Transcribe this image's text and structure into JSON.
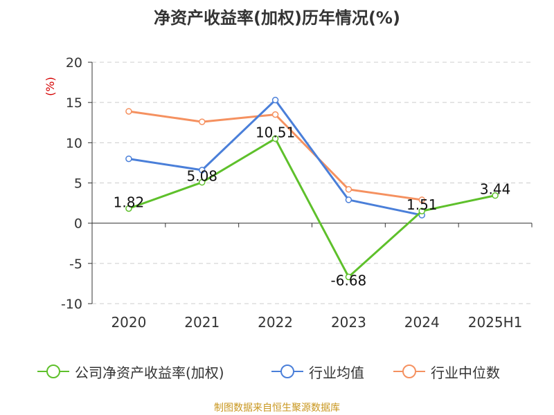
{
  "chart_data": {
    "type": "line",
    "title": "净资产收益率(加权)历年情况(%)",
    "ylabel": "(%)",
    "xlabel": "",
    "categories": [
      "2020",
      "2021",
      "2022",
      "2023",
      "2024",
      "2025H1"
    ],
    "ylim": [
      -10,
      20
    ],
    "yticks": [
      -10,
      -5,
      0,
      5,
      10,
      15,
      20
    ],
    "grid": true,
    "legend_position": "bottom",
    "series": [
      {
        "name": "公司净资产收益率(加权)",
        "color": "#5ec02b",
        "values": [
          1.82,
          5.08,
          10.51,
          -6.68,
          1.51,
          3.44
        ],
        "labels": [
          "1.82",
          "5.08",
          "10.51",
          "-6.68",
          "1.51",
          "3.44"
        ]
      },
      {
        "name": "行业均值",
        "color": "#4a7fd9",
        "values": [
          8.0,
          6.6,
          15.3,
          2.9,
          1.0,
          null
        ]
      },
      {
        "name": "行业中位数",
        "color": "#f59160",
        "values": [
          13.9,
          12.6,
          13.5,
          4.2,
          2.9,
          null
        ]
      }
    ]
  },
  "source": "制图数据来自恒生聚源数据库"
}
